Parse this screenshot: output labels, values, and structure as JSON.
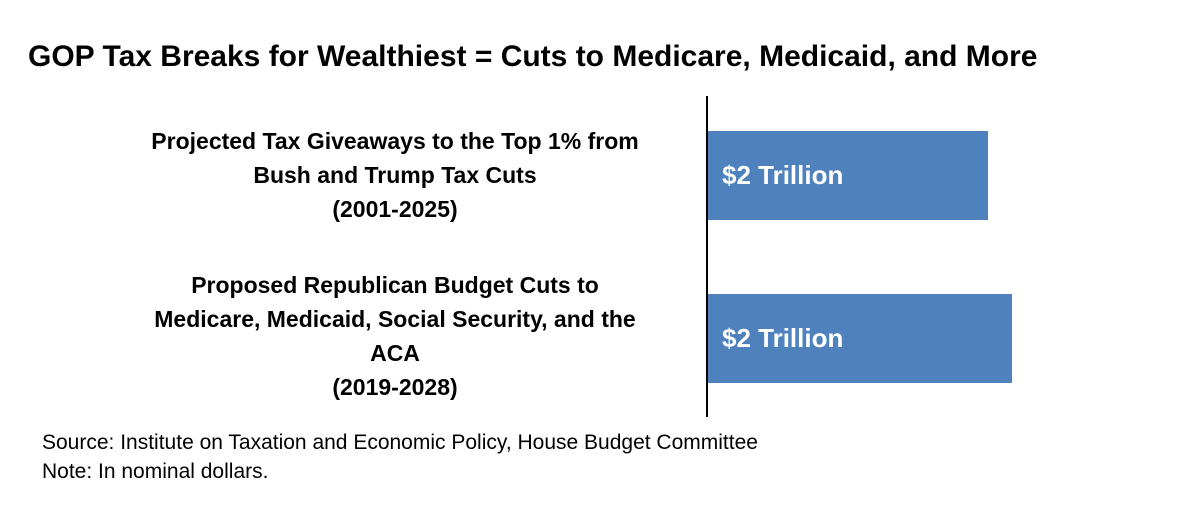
{
  "title": "GOP Tax Breaks for Wealthiest = Cuts to Medicare, Medicaid, and More",
  "footnotes": {
    "source": "Source: Institute on Taxation and Economic Policy, House Budget Committee",
    "note": "Note: In nominal dollars."
  },
  "colors": {
    "bar": "#4f81bd",
    "bar_label_text": "#ffffff",
    "text": "#000000",
    "axis": "#000000"
  },
  "rows": [
    {
      "lines": [
        "Projected Tax Giveaways to the Top 1% from",
        "Bush and Trump Tax Cuts",
        "(2001-2025)"
      ],
      "value_label": "$2 Trillion",
      "value": 2.0
    },
    {
      "lines": [
        "Proposed Republican Budget Cuts to",
        "Medicare, Medicaid, Social Security, and the",
        "ACA",
        "(2019-2028)"
      ],
      "value_label": "$2 Trillion",
      "value": 2.17
    }
  ],
  "chart_data": {
    "type": "bar",
    "orientation": "horizontal",
    "title": "GOP Tax Breaks for Wealthiest = Cuts to Medicare, Medicaid, and More",
    "categories": [
      "Projected Tax Giveaways to the Top 1% from Bush and Trump Tax Cuts (2001-2025)",
      "Proposed Republican Budget Cuts to Medicare, Medicaid, Social Security, and the ACA (2019-2028)"
    ],
    "values": [
      2.0,
      2.17
    ],
    "data_labels": [
      "$2 Trillion",
      "$2 Trillion"
    ],
    "unit": "trillions of nominal US dollars",
    "xlim": [
      0,
      3.0
    ],
    "grid": false,
    "legend": false,
    "bar_color": "#4f81bd",
    "annotations": [
      "Source: Institute on Taxation and Economic Policy, House Budget Committee",
      "Note: In nominal dollars."
    ]
  }
}
